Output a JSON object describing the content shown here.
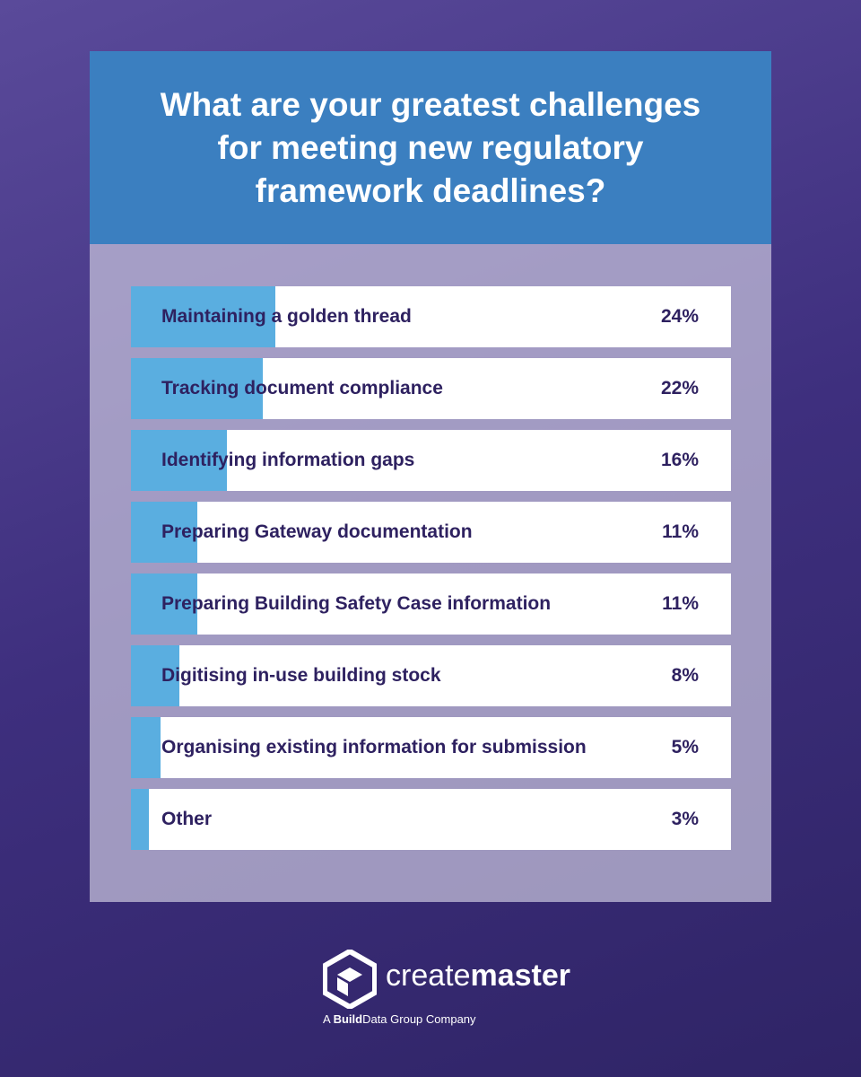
{
  "chart_data": {
    "type": "bar",
    "orientation": "horizontal",
    "title": "What are your greatest challenges for meeting new regulatory framework deadlines?",
    "categories": [
      "Maintaining a golden thread",
      "Tracking document compliance",
      "Identifying information gaps",
      "Preparing Gateway documentation",
      "Preparing Building Safety Case information",
      "Digitising in-use building stock",
      "Organising existing information for submission",
      "Other"
    ],
    "values": [
      24,
      22,
      16,
      11,
      11,
      8,
      5,
      3
    ],
    "value_labels": [
      "24%",
      "22%",
      "16%",
      "11%",
      "11%",
      "8%",
      "5%",
      "3%"
    ],
    "color": "#5aaee0",
    "xlim": [
      0,
      100
    ]
  },
  "footer": {
    "brand_light": "create",
    "brand_bold": "master",
    "tagline_start": "A ",
    "tagline_bold": "Build",
    "tagline_end": "Data Group Company"
  }
}
